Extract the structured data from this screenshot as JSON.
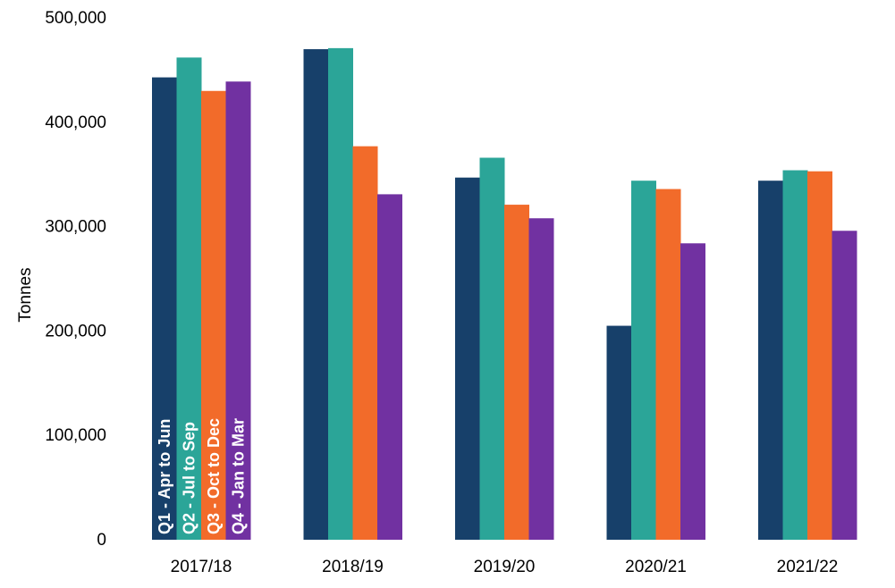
{
  "chart_data": {
    "type": "bar",
    "title": "",
    "xlabel": "",
    "ylabel": "Tonnes",
    "ylim": [
      0,
      500000
    ],
    "yticks": [
      0,
      100000,
      200000,
      300000,
      400000,
      500000
    ],
    "ytick_labels": [
      "0",
      "100,000",
      "200,000",
      "300,000",
      "400,000",
      "500,000"
    ],
    "grid": false,
    "legend": "in-bar labels on first category",
    "categories": [
      "2017/18",
      "2018/19",
      "2019/20",
      "2020/21",
      "2021/22"
    ],
    "series": [
      {
        "name": "Q1 - Apr to Jun",
        "color": "#17406A",
        "values": [
          443000,
          470000,
          347000,
          205000,
          344000
        ]
      },
      {
        "name": "Q2 - Jul to Sep",
        "color": "#2BA598",
        "values": [
          462000,
          471000,
          366000,
          344000,
          354000
        ]
      },
      {
        "name": "Q3 - Oct to Dec",
        "color": "#F26B2A",
        "values": [
          430000,
          377000,
          321000,
          336000,
          353000
        ]
      },
      {
        "name": "Q4 - Jan to Mar",
        "color": "#7131A1",
        "values": [
          439000,
          331000,
          308000,
          284000,
          296000
        ]
      }
    ]
  }
}
